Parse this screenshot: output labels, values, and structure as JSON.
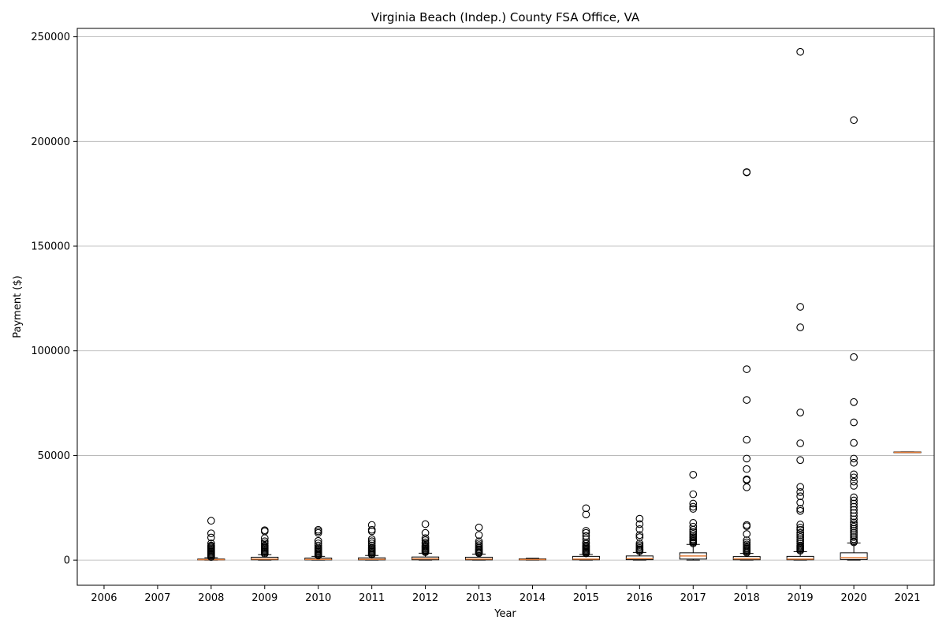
{
  "chart_data": {
    "type": "box",
    "title": "Virginia Beach (Indep.) County FSA Office, VA",
    "xlabel": "Year",
    "ylabel": "Payment ($)",
    "ylim": [
      -12000,
      254000
    ],
    "yticks": [
      0,
      50000,
      100000,
      150000,
      200000,
      250000
    ],
    "grid": "y",
    "colors": {
      "box": "#000000",
      "median": "#e07b39",
      "grid": "#b0b0b0",
      "outlier": "#000000"
    },
    "categories": [
      "2006",
      "2007",
      "2008",
      "2009",
      "2010",
      "2011",
      "2012",
      "2013",
      "2014",
      "2015",
      "2016",
      "2017",
      "2018",
      "2019",
      "2020",
      "2021"
    ],
    "boxes": [
      {
        "year": "2006",
        "empty": true
      },
      {
        "year": "2007",
        "empty": true
      },
      {
        "year": "2008",
        "q1": 100,
        "median": 250,
        "q3": 550,
        "whislo": 0,
        "whishi": 1200,
        "fliers": [
          1500,
          2000,
          2500,
          3000,
          3500,
          4000,
          4500,
          5000,
          5500,
          6000,
          6500,
          7000,
          8000,
          10800,
          12800,
          18800
        ]
      },
      {
        "year": "2009",
        "q1": 150,
        "median": 500,
        "q3": 1400,
        "whislo": 0,
        "whishi": 2600,
        "fliers": [
          3000,
          3500,
          4000,
          4500,
          5000,
          5500,
          6000,
          6500,
          7000,
          8000,
          9000,
          10500,
          13800,
          14300
        ]
      },
      {
        "year": "2010",
        "q1": 100,
        "median": 350,
        "q3": 1000,
        "whislo": 0,
        "whishi": 1800,
        "fliers": [
          2200,
          2600,
          3000,
          3500,
          4000,
          4500,
          5000,
          5500,
          6000,
          7000,
          8000,
          9200,
          13000,
          13800,
          14500
        ]
      },
      {
        "year": "2011",
        "q1": 100,
        "median": 400,
        "q3": 1100,
        "whislo": 0,
        "whishi": 2200,
        "fliers": [
          2600,
          3000,
          3500,
          4000,
          4500,
          5000,
          5500,
          6000,
          7000,
          8000,
          9000,
          10000,
          13800,
          14500,
          16800
        ]
      },
      {
        "year": "2012",
        "q1": 150,
        "median": 600,
        "q3": 1500,
        "whislo": 0,
        "whishi": 3300,
        "fliers": [
          3800,
          4200,
          4600,
          5000,
          5500,
          6000,
          6500,
          7000,
          7800,
          8500,
          9500,
          10500,
          13000,
          17200
        ]
      },
      {
        "year": "2013",
        "q1": 100,
        "median": 500,
        "q3": 1400,
        "whislo": 0,
        "whishi": 2900,
        "fliers": [
          3300,
          3700,
          4200,
          4700,
          5200,
          5800,
          6500,
          7200,
          8000,
          9000,
          12000,
          15600
        ]
      },
      {
        "year": "2014",
        "q1": 100,
        "median": 300,
        "q3": 600,
        "whislo": 0,
        "whishi": 900,
        "fliers": []
      },
      {
        "year": "2015",
        "q1": 150,
        "median": 500,
        "q3": 1800,
        "whislo": 0,
        "whishi": 2700,
        "fliers": [
          3200,
          3600,
          4000,
          4500,
          5000,
          5500,
          6000,
          6500,
          7000,
          7800,
          8500,
          10000,
          11500,
          13000,
          14000,
          21800,
          24800
        ]
      },
      {
        "year": "2016",
        "q1": 200,
        "median": 700,
        "q3": 2000,
        "whislo": 0,
        "whishi": 3700,
        "fliers": [
          4200,
          4700,
          5200,
          5800,
          6500,
          7200,
          8000,
          11000,
          12000,
          14800,
          17200,
          19800
        ]
      },
      {
        "year": "2017",
        "q1": 500,
        "median": 2000,
        "q3": 3500,
        "whislo": 0,
        "whishi": 7500,
        "fliers": [
          8000,
          8500,
          9000,
          9500,
          10000,
          10800,
          11500,
          12500,
          13500,
          14500,
          16000,
          17800,
          24500,
          25500,
          27000,
          31500,
          40800
        ]
      },
      {
        "year": "2018",
        "q1": 150,
        "median": 600,
        "q3": 1700,
        "whislo": 0,
        "whishi": 3200,
        "fliers": [
          3500,
          4000,
          4500,
          5000,
          5500,
          6000,
          6800,
          7500,
          8500,
          9500,
          12500,
          16200,
          16800,
          34800,
          38200,
          38600,
          43500,
          48500,
          57500,
          76500,
          91200,
          185200,
          185400
        ]
      },
      {
        "year": "2019",
        "q1": 150,
        "median": 500,
        "q3": 1800,
        "whislo": 0,
        "whishi": 4000,
        "fliers": [
          4500,
          5000,
          5500,
          6000,
          6500,
          7000,
          8000,
          9000,
          10000,
          11000,
          12000,
          13000,
          14500,
          15500,
          17000,
          23500,
          24500,
          27500,
          30500,
          32500,
          35000,
          47800,
          55800,
          70500,
          111200,
          121000,
          242800
        ]
      },
      {
        "year": "2020",
        "q1": 300,
        "median": 1200,
        "q3": 3500,
        "whislo": 0,
        "whishi": 8200,
        "fliers": [
          8500,
          9000,
          10000,
          11000,
          12000,
          13000,
          14000,
          15000,
          16000,
          17000,
          18000,
          19500,
          21000,
          22500,
          24000,
          25500,
          27000,
          28500,
          30000,
          35500,
          37500,
          39500,
          41000,
          46500,
          48500,
          56000,
          65800,
          75500,
          97000,
          210200
        ]
      },
      {
        "year": "2021",
        "q1": 51300,
        "median": 51500,
        "q3": 51700,
        "whislo": 51300,
        "whishi": 51700,
        "fliers": []
      }
    ]
  }
}
